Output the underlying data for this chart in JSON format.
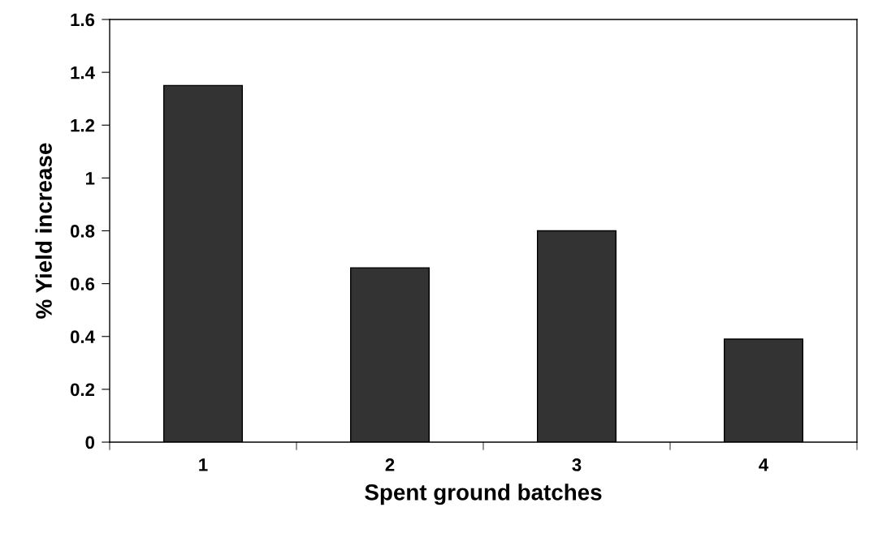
{
  "chart_data": {
    "type": "bar",
    "xlabel": "Spent ground batches",
    "ylabel": "% Yield increase",
    "categories": [
      "1",
      "2",
      "3",
      "4"
    ],
    "values": [
      1.35,
      0.66,
      0.8,
      0.39
    ],
    "color": "#333333",
    "ylim": [
      0,
      1.6
    ],
    "yticks": [
      0,
      {
        "value": 0.2,
        "label": "0.2"
      },
      {
        "value": 0.4,
        "label": "0.4"
      },
      {
        "value": 0.6,
        "label": "0.6"
      },
      {
        "value": 0.8,
        "label": "0.8"
      },
      1,
      {
        "value": 1.2,
        "label": "1.2"
      },
      {
        "value": 1.4,
        "label": "1.4"
      },
      {
        "value": 1.6,
        "label": "1.6"
      }
    ],
    "grid": false,
    "legend": false
  }
}
